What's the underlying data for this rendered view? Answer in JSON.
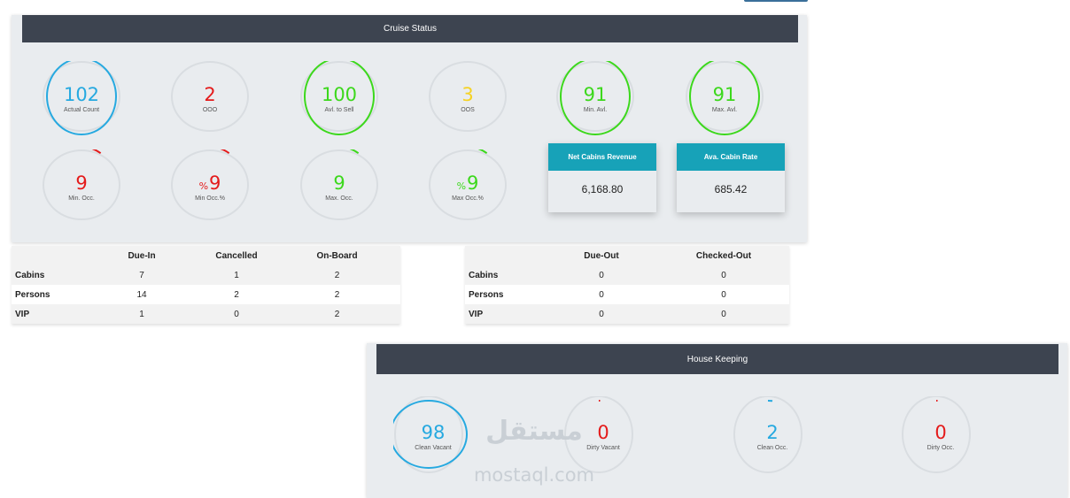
{
  "colors": {
    "blue": "#26a9e0",
    "red": "#e41b1b",
    "green": "#3cd81c",
    "yellow": "#f5d222",
    "track": "#d9dde1",
    "header": "#3d4450",
    "card_header": "#17a2b8"
  },
  "cruise": {
    "title": "Cruise Status",
    "gauges": [
      {
        "value": "102",
        "label": "Actual Count",
        "color": "blue",
        "fill": 1.0,
        "pct": ""
      },
      {
        "value": "2",
        "label": "OOO",
        "color": "red",
        "fill": 0.02,
        "pct": ""
      },
      {
        "value": "100",
        "label": "Avl. to Sell",
        "color": "green",
        "fill": 1.0,
        "pct": ""
      },
      {
        "value": "3",
        "label": "OOS",
        "color": "yellow",
        "fill": 0.03,
        "pct": ""
      },
      {
        "value": "91",
        "label": "Min. Avl.",
        "color": "green",
        "fill": 1.0,
        "pct": ""
      },
      {
        "value": "91",
        "label": "Max. Avl.",
        "color": "green",
        "fill": 1.0,
        "pct": ""
      },
      {
        "value": "9",
        "label": "Min. Occ.",
        "color": "red",
        "fill": 0.09,
        "pct": ""
      },
      {
        "value": "9",
        "label": "Min Occ.%",
        "color": "red",
        "fill": 0.09,
        "pct": "%"
      },
      {
        "value": "9",
        "label": "Max. Occ.",
        "color": "green",
        "fill": 0.09,
        "pct": ""
      },
      {
        "value": "9",
        "label": "Max Occ.%",
        "color": "green",
        "fill": 0.09,
        "pct": "%"
      }
    ],
    "cards": [
      {
        "title": "Net Cabins Revenue",
        "value": "6,168.80"
      },
      {
        "title": "Ava. Cabin Rate",
        "value": "685.42"
      }
    ]
  },
  "table_in": {
    "headers": [
      "",
      "Due-In",
      "Cancelled",
      "On-Board"
    ],
    "rows": [
      [
        "Cabins",
        "7",
        "1",
        "2"
      ],
      [
        "Persons",
        "14",
        "2",
        "2"
      ],
      [
        "VIP",
        "1",
        "0",
        "2"
      ]
    ]
  },
  "table_out": {
    "headers": [
      "",
      "Due-Out",
      "Checked-Out"
    ],
    "rows": [
      [
        "Cabins",
        "0",
        "0"
      ],
      [
        "Persons",
        "0",
        "0"
      ],
      [
        "VIP",
        "0",
        "0"
      ]
    ]
  },
  "housekeeping": {
    "title": "House Keeping",
    "gauges": [
      {
        "value": "98",
        "label": "Clean Vacant",
        "color": "blue",
        "fill": 1.0,
        "pct": ""
      },
      {
        "value": "0",
        "label": "Dirty Vacant",
        "color": "red",
        "fill": 0.0,
        "pct": ""
      },
      {
        "value": "2",
        "label": "Clean Occ.",
        "color": "blue",
        "fill": 0.02,
        "pct": ""
      },
      {
        "value": "0",
        "label": "Dirty Occ.",
        "color": "red",
        "fill": 0.0,
        "pct": ""
      }
    ]
  },
  "watermark": {
    "logo": "مستقل",
    "text": "mostaql.com"
  }
}
